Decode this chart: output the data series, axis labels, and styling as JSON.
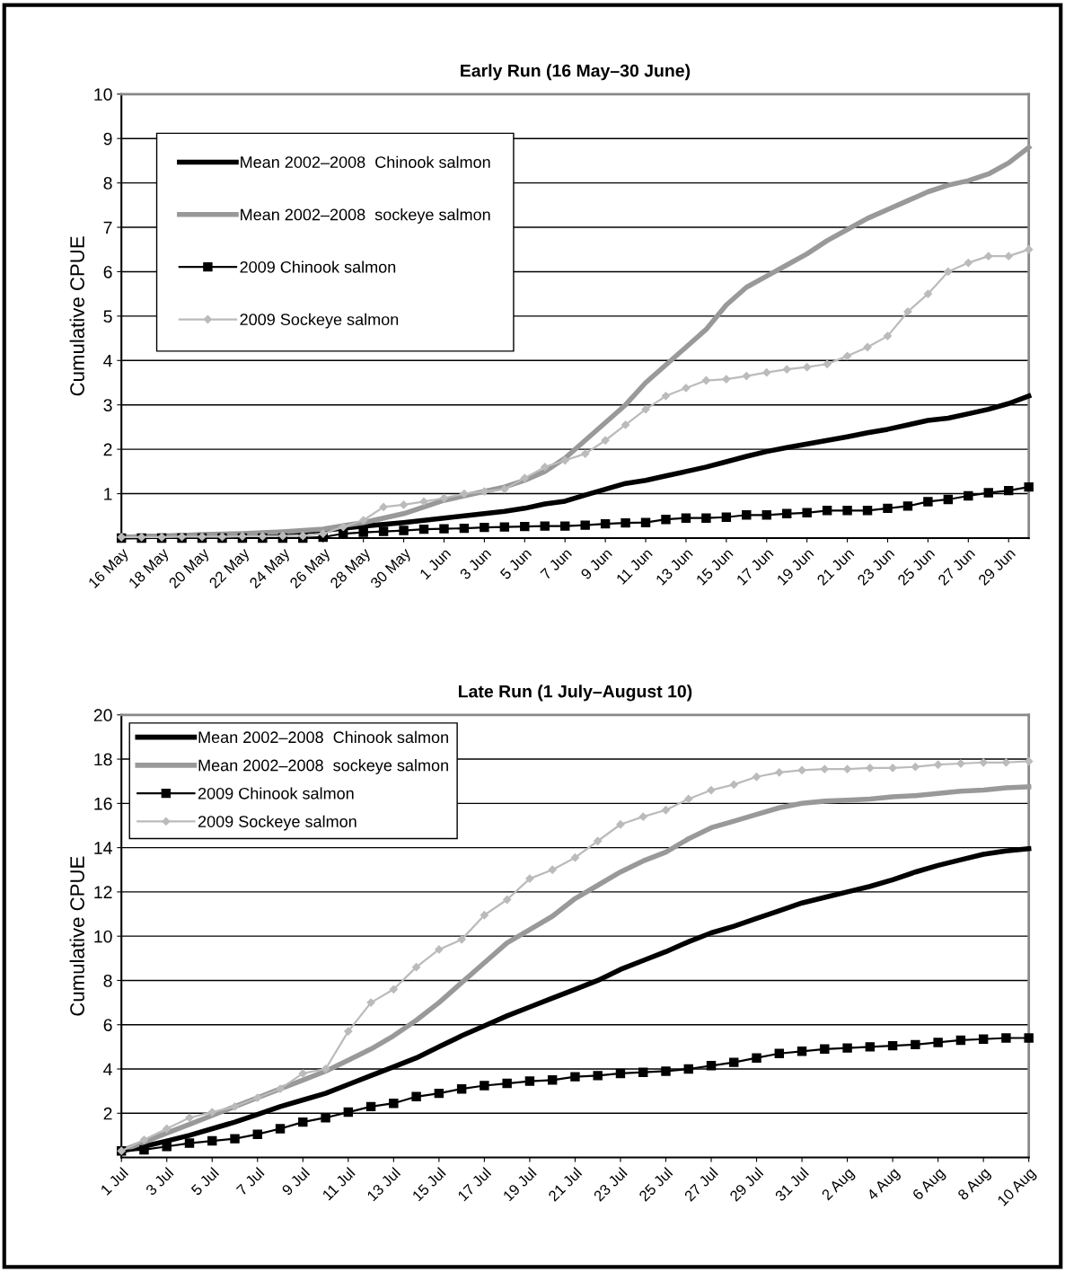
{
  "chart_data": [
    {
      "type": "line",
      "title": "Early Run (16 May–30 June)",
      "ylabel": "Cumulative CPUE",
      "categories": [
        "16 May",
        null,
        "18 May",
        null,
        "20 May",
        null,
        "22 May",
        null,
        "24 May",
        null,
        "26 May",
        null,
        "28 May",
        null,
        "30 May",
        null,
        "1 Jun",
        null,
        "3 Jun",
        null,
        "5 Jun",
        null,
        "7 Jun",
        null,
        "9 Jun",
        null,
        "11 Jun",
        null,
        "13 Jun",
        null,
        "15 Jun",
        null,
        "17 Jun",
        null,
        "19 Jun",
        null,
        "21 Jun",
        null,
        "23 Jun",
        null,
        "25 Jun",
        null,
        "27 Jun",
        null,
        "29 Jun",
        null
      ],
      "ylim": [
        0,
        10
      ],
      "yticks": [
        1,
        2,
        3,
        4,
        5,
        6,
        7,
        8,
        9,
        10
      ],
      "grid": "y",
      "legend": "top left",
      "series": [
        {
          "name": "Mean 2002–2008  Chinook salmon",
          "color": "#000000",
          "marker": "none",
          "values": [
            0.02,
            0.03,
            0.04,
            0.05,
            0.06,
            0.07,
            0.08,
            0.1,
            0.12,
            0.14,
            0.17,
            0.22,
            0.27,
            0.31,
            0.35,
            0.4,
            0.45,
            0.5,
            0.55,
            0.6,
            0.67,
            0.77,
            0.83,
            0.97,
            1.1,
            1.23,
            1.3,
            1.4,
            1.5,
            1.6,
            1.72,
            1.84,
            1.95,
            2.04,
            2.12,
            2.2,
            2.28,
            2.37,
            2.45,
            2.55,
            2.65,
            2.7,
            2.8,
            2.9,
            3.03,
            3.2
          ]
        },
        {
          "name": "Mean 2002–2008  sockeye salmon",
          "color": "#999999",
          "marker": "none",
          "values": [
            0.02,
            0.03,
            0.05,
            0.06,
            0.08,
            0.09,
            0.1,
            0.12,
            0.14,
            0.17,
            0.2,
            0.28,
            0.35,
            0.45,
            0.55,
            0.7,
            0.85,
            0.95,
            1.05,
            1.15,
            1.3,
            1.5,
            1.8,
            2.2,
            2.6,
            3.0,
            3.5,
            3.9,
            4.3,
            4.7,
            5.25,
            5.65,
            5.9,
            6.15,
            6.4,
            6.7,
            6.95,
            7.2,
            7.4,
            7.6,
            7.8,
            7.95,
            8.05,
            8.2,
            8.45,
            8.8
          ]
        },
        {
          "name": "2009 Chinook salmon",
          "color": "#000000",
          "marker": "square",
          "values": [
            0,
            0,
            0,
            0,
            0,
            0,
            0,
            0,
            0,
            0,
            0.02,
            0.1,
            0.13,
            0.15,
            0.17,
            0.2,
            0.21,
            0.22,
            0.24,
            0.25,
            0.26,
            0.27,
            0.27,
            0.29,
            0.32,
            0.34,
            0.35,
            0.42,
            0.45,
            0.45,
            0.47,
            0.52,
            0.52,
            0.55,
            0.57,
            0.62,
            0.62,
            0.62,
            0.67,
            0.72,
            0.82,
            0.87,
            0.95,
            1.02,
            1.07,
            1.15
          ]
        },
        {
          "name": "2009 Sockeye salmon",
          "color": "#bbbbbb",
          "marker": "diamond",
          "values": [
            0.02,
            0.02,
            0.02,
            0.03,
            0.03,
            0.03,
            0.04,
            0.04,
            0.05,
            0.05,
            0.1,
            0.25,
            0.4,
            0.7,
            0.75,
            0.82,
            0.9,
            1.0,
            1.05,
            1.1,
            1.35,
            1.6,
            1.75,
            1.9,
            2.2,
            2.55,
            2.9,
            3.2,
            3.38,
            3.55,
            3.58,
            3.65,
            3.73,
            3.8,
            3.85,
            3.92,
            4.1,
            4.3,
            4.55,
            5.1,
            5.5,
            6.0,
            6.2,
            6.35,
            6.35,
            6.5
          ]
        }
      ]
    },
    {
      "type": "line",
      "title": "Late Run (1 July–August 10)",
      "ylabel": "Cumulative CPUE",
      "categories": [
        "1 Jul",
        null,
        "3 Jul",
        null,
        "5 Jul",
        null,
        "7 Jul",
        null,
        "9 Jul",
        null,
        "11 Jul",
        null,
        "13 Jul",
        null,
        "15 Jul",
        null,
        "17 Jul",
        null,
        "19 Jul",
        null,
        "21 Jul",
        null,
        "23 Jul",
        null,
        "25 Jul",
        null,
        "27 Jul",
        null,
        "29 Jul",
        null,
        "31 Jul",
        null,
        "2 Aug",
        null,
        "4 Aug",
        null,
        "6 Aug",
        null,
        "8 Aug",
        null,
        "10 Aug"
      ],
      "ylim": [
        0,
        20
      ],
      "yticks": [
        2,
        4,
        6,
        8,
        10,
        12,
        14,
        16,
        18,
        20
      ],
      "grid": "y",
      "legend": "top left",
      "series": [
        {
          "name": "Mean 2002–2008  Chinook salmon",
          "color": "#000000",
          "marker": "none",
          "values": [
            0.3,
            0.5,
            0.75,
            1.0,
            1.3,
            1.6,
            1.95,
            2.3,
            2.6,
            2.9,
            3.3,
            3.7,
            4.1,
            4.5,
            5.0,
            5.5,
            5.95,
            6.4,
            6.8,
            7.2,
            7.6,
            8.0,
            8.5,
            8.9,
            9.3,
            9.75,
            10.15,
            10.45,
            10.8,
            11.15,
            11.5,
            11.75,
            12.0,
            12.25,
            12.55,
            12.9,
            13.2,
            13.45,
            13.7,
            13.85,
            13.95
          ]
        },
        {
          "name": "Mean 2002–2008  sockeye salmon",
          "color": "#999999",
          "marker": "none",
          "values": [
            0.3,
            0.7,
            1.1,
            1.5,
            1.9,
            2.3,
            2.7,
            3.1,
            3.5,
            3.9,
            4.4,
            4.9,
            5.5,
            6.2,
            7.0,
            7.9,
            8.8,
            9.7,
            10.3,
            10.9,
            11.7,
            12.3,
            12.9,
            13.4,
            13.8,
            14.4,
            14.9,
            15.2,
            15.5,
            15.8,
            16.0,
            16.1,
            16.15,
            16.2,
            16.3,
            16.35,
            16.45,
            16.55,
            16.6,
            16.7,
            16.75
          ]
        },
        {
          "name": "2009 Chinook salmon",
          "color": "#000000",
          "marker": "square",
          "values": [
            0.3,
            0.35,
            0.5,
            0.65,
            0.75,
            0.85,
            1.05,
            1.3,
            1.6,
            1.8,
            2.05,
            2.3,
            2.45,
            2.75,
            2.9,
            3.1,
            3.25,
            3.35,
            3.45,
            3.5,
            3.65,
            3.7,
            3.8,
            3.85,
            3.9,
            4.0,
            4.15,
            4.3,
            4.5,
            4.7,
            4.8,
            4.9,
            4.95,
            5.0,
            5.05,
            5.1,
            5.2,
            5.3,
            5.35,
            5.4,
            5.4
          ]
        },
        {
          "name": "2009 Sockeye salmon",
          "color": "#bbbbbb",
          "marker": "diamond",
          "values": [
            0.3,
            0.8,
            1.3,
            1.8,
            2.05,
            2.3,
            2.7,
            3.1,
            3.8,
            4.0,
            5.7,
            7.0,
            7.6,
            8.6,
            9.4,
            9.85,
            10.95,
            11.65,
            12.6,
            13.0,
            13.55,
            14.3,
            15.05,
            15.4,
            15.7,
            16.2,
            16.6,
            16.85,
            17.2,
            17.4,
            17.5,
            17.55,
            17.55,
            17.6,
            17.6,
            17.65,
            17.75,
            17.8,
            17.85,
            17.85,
            17.9
          ]
        }
      ]
    }
  ]
}
